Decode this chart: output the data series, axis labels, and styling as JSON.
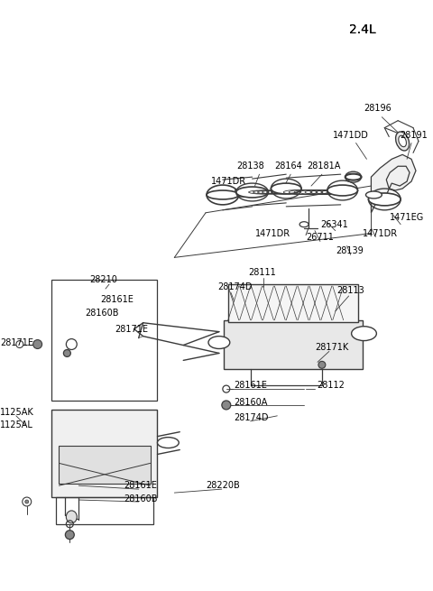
{
  "title": "2.4L",
  "bg": "#ffffff",
  "lc": "#3a3a3a",
  "figsize": [
    4.8,
    6.55
  ],
  "dpi": 100,
  "xlim": [
    0,
    480
  ],
  "ylim": [
    0,
    655
  ]
}
